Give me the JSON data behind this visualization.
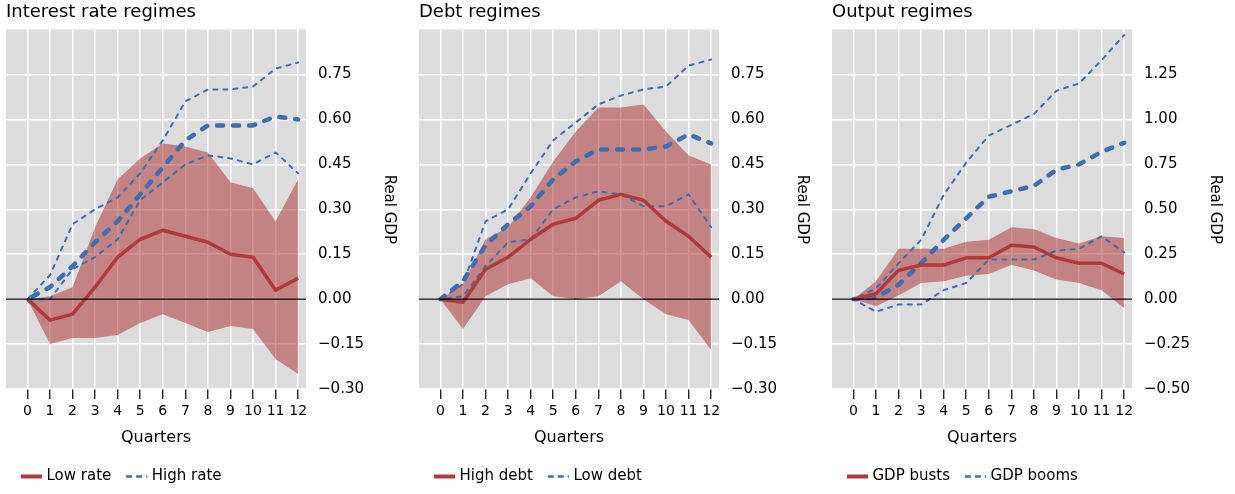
{
  "chart_data": [
    {
      "type": "line",
      "title": "Interest rate regimes",
      "xlabel": "Quarters",
      "ylabel": "Real GDP",
      "x": [
        0,
        1,
        2,
        3,
        4,
        5,
        6,
        7,
        8,
        9,
        10,
        11,
        12
      ],
      "xlim": [
        -0.95,
        12.35
      ],
      "xticks": [
        0,
        1,
        2,
        3,
        4,
        5,
        6,
        7,
        8,
        9,
        10,
        11,
        12
      ],
      "ylim": [
        -0.3,
        0.9
      ],
      "yticks": [
        {
          "value": -0.3,
          "label": "−0.30"
        },
        {
          "value": -0.15,
          "label": "−0.15"
        },
        {
          "value": 0,
          "label": "0.00"
        },
        {
          "value": 0.15,
          "label": "0.15"
        },
        {
          "value": 0.3,
          "label": "0.30"
        },
        {
          "value": 0.45,
          "label": "0.45"
        },
        {
          "value": 0.6,
          "label": "0.60"
        },
        {
          "value": 0.75,
          "label": "0.75"
        }
      ],
      "grid": true,
      "legend": "bottom left",
      "ref_lines": [
        {
          "axis": "y",
          "value": 0,
          "color": "#000000"
        }
      ],
      "series": [
        {
          "name": "Low rate",
          "color": "#b03a3a",
          "line_style": "solid",
          "values": [
            0,
            -0.07,
            -0.05,
            0.04,
            0.14,
            0.2,
            0.23,
            0.21,
            0.19,
            0.15,
            0.14,
            0.03,
            0.07
          ],
          "lower": [
            0,
            -0.15,
            -0.13,
            -0.13,
            -0.12,
            -0.08,
            -0.05,
            -0.08,
            -0.11,
            -0.09,
            -0.1,
            -0.2,
            -0.25
          ],
          "upper": [
            0,
            0.01,
            0.04,
            0.24,
            0.4,
            0.47,
            0.52,
            0.51,
            0.49,
            0.39,
            0.37,
            0.26,
            0.4
          ]
        },
        {
          "name": "High rate",
          "color": "#3a6eb5",
          "line_style": "dashed",
          "values": [
            0,
            0.04,
            0.11,
            0.19,
            0.26,
            0.35,
            0.44,
            0.53,
            0.58,
            0.58,
            0.58,
            0.61,
            0.6
          ]
        },
        {
          "color": "#3a6eb5",
          "line_style": "dashed",
          "values": [
            0,
            0,
            0.1,
            0.14,
            0.2,
            0.33,
            0.39,
            0.45,
            0.48,
            0.47,
            0.45,
            0.49,
            0.42
          ]
        },
        {
          "color": "#3a6eb5",
          "line_style": "dashed",
          "values": [
            0,
            0.08,
            0.25,
            0.3,
            0.34,
            0.42,
            0.53,
            0.66,
            0.7,
            0.7,
            0.71,
            0.77,
            0.79
          ]
        }
      ]
    },
    {
      "type": "line",
      "title": "Debt regimes",
      "xlabel": "Quarters",
      "ylabel": "Real GDP",
      "x": [
        0,
        1,
        2,
        3,
        4,
        5,
        6,
        7,
        8,
        9,
        10,
        11,
        12
      ],
      "xlim": [
        -0.95,
        12.35
      ],
      "xticks": [
        0,
        1,
        2,
        3,
        4,
        5,
        6,
        7,
        8,
        9,
        10,
        11,
        12
      ],
      "ylim": [
        -0.3,
        0.9
      ],
      "yticks": [
        {
          "value": -0.3,
          "label": "−0.30"
        },
        {
          "value": -0.15,
          "label": "−0.15"
        },
        {
          "value": 0,
          "label": "0.00"
        },
        {
          "value": 0.15,
          "label": "0.15"
        },
        {
          "value": 0.3,
          "label": "0.30"
        },
        {
          "value": 0.45,
          "label": "0.45"
        },
        {
          "value": 0.6,
          "label": "0.60"
        },
        {
          "value": 0.75,
          "label": "0.75"
        }
      ],
      "grid": true,
      "legend": "bottom left",
      "ref_lines": [
        {
          "axis": "y",
          "value": 0,
          "color": "#000000"
        }
      ],
      "series": [
        {
          "name": "High debt",
          "color": "#b03a3a",
          "line_style": "solid",
          "values": [
            0,
            -0.01,
            0.1,
            0.14,
            0.2,
            0.25,
            0.27,
            0.33,
            0.35,
            0.33,
            0.26,
            0.21,
            0.14
          ],
          "lower": [
            0,
            -0.1,
            0.01,
            0.05,
            0.07,
            0.01,
            0,
            0.01,
            0.06,
            0,
            -0.05,
            -0.07,
            -0.17
          ],
          "upper": [
            0,
            0.05,
            0.2,
            0.24,
            0.34,
            0.46,
            0.56,
            0.64,
            0.64,
            0.65,
            0.56,
            0.48,
            0.45
          ]
        },
        {
          "name": "Low debt",
          "color": "#3a6eb5",
          "line_style": "dashed",
          "values": [
            0,
            0.06,
            0.18,
            0.25,
            0.31,
            0.4,
            0.46,
            0.5,
            0.5,
            0.5,
            0.51,
            0.55,
            0.52
          ]
        },
        {
          "color": "#3a6eb5",
          "line_style": "dashed",
          "values": [
            0,
            0.01,
            0.11,
            0.19,
            0.2,
            0.3,
            0.34,
            0.36,
            0.35,
            0.31,
            0.31,
            0.35,
            0.24
          ]
        },
        {
          "color": "#3a6eb5",
          "line_style": "dashed",
          "values": [
            0,
            0.05,
            0.26,
            0.3,
            0.42,
            0.53,
            0.59,
            0.65,
            0.68,
            0.7,
            0.71,
            0.78,
            0.8
          ]
        }
      ]
    },
    {
      "type": "line",
      "title": "Output regimes",
      "xlabel": "Quarters",
      "ylabel": "Real GDP",
      "x": [
        0,
        1,
        2,
        3,
        4,
        5,
        6,
        7,
        8,
        9,
        10,
        11,
        12
      ],
      "xlim": [
        -0.95,
        12.35
      ],
      "xticks": [
        0,
        1,
        2,
        3,
        4,
        5,
        6,
        7,
        8,
        9,
        10,
        11,
        12
      ],
      "ylim": [
        -0.5,
        1.5
      ],
      "yticks": [
        {
          "value": -0.5,
          "label": "−0.50"
        },
        {
          "value": -0.25,
          "label": "−0.25"
        },
        {
          "value": 0,
          "label": "0.00"
        },
        {
          "value": 0.25,
          "label": "0.25"
        },
        {
          "value": 0.5,
          "label": "0.50"
        },
        {
          "value": 0.75,
          "label": "0.75"
        },
        {
          "value": 1,
          "label": "1.00"
        },
        {
          "value": 1.25,
          "label": "1.25"
        }
      ],
      "grid": true,
      "legend": "bottom left",
      "ref_lines": [
        {
          "axis": "y",
          "value": 0,
          "color": "#000000"
        }
      ],
      "series": [
        {
          "name": "GDP busts",
          "color": "#b03a3a",
          "line_style": "solid",
          "values": [
            0,
            0.03,
            0.16,
            0.19,
            0.19,
            0.23,
            0.23,
            0.3,
            0.29,
            0.23,
            0.2,
            0.2,
            0.14
          ],
          "lower": [
            0,
            -0.04,
            0.02,
            0.09,
            0.1,
            0.13,
            0.14,
            0.19,
            0.16,
            0.11,
            0.09,
            0.05,
            -0.05
          ],
          "upper": [
            0,
            0.1,
            0.28,
            0.28,
            0.28,
            0.32,
            0.33,
            0.4,
            0.39,
            0.34,
            0.31,
            0.35,
            0.34
          ]
        },
        {
          "name": "GDP booms",
          "color": "#3a6eb5",
          "line_style": "dashed",
          "values": [
            0,
            0.01,
            0.08,
            0.2,
            0.33,
            0.45,
            0.57,
            0.6,
            0.63,
            0.72,
            0.75,
            0.82,
            0.87
          ]
        },
        {
          "color": "#3a6eb5",
          "line_style": "dashed",
          "values": [
            0,
            -0.07,
            -0.03,
            -0.03,
            0.05,
            0.09,
            0.22,
            0.22,
            0.22,
            0.27,
            0.28,
            0.35,
            0.26
          ]
        },
        {
          "color": "#3a6eb5",
          "line_style": "dashed",
          "values": [
            0,
            0.06,
            0.2,
            0.33,
            0.58,
            0.76,
            0.91,
            0.97,
            1.03,
            1.16,
            1.2,
            1.33,
            1.47
          ]
        }
      ]
    }
  ]
}
